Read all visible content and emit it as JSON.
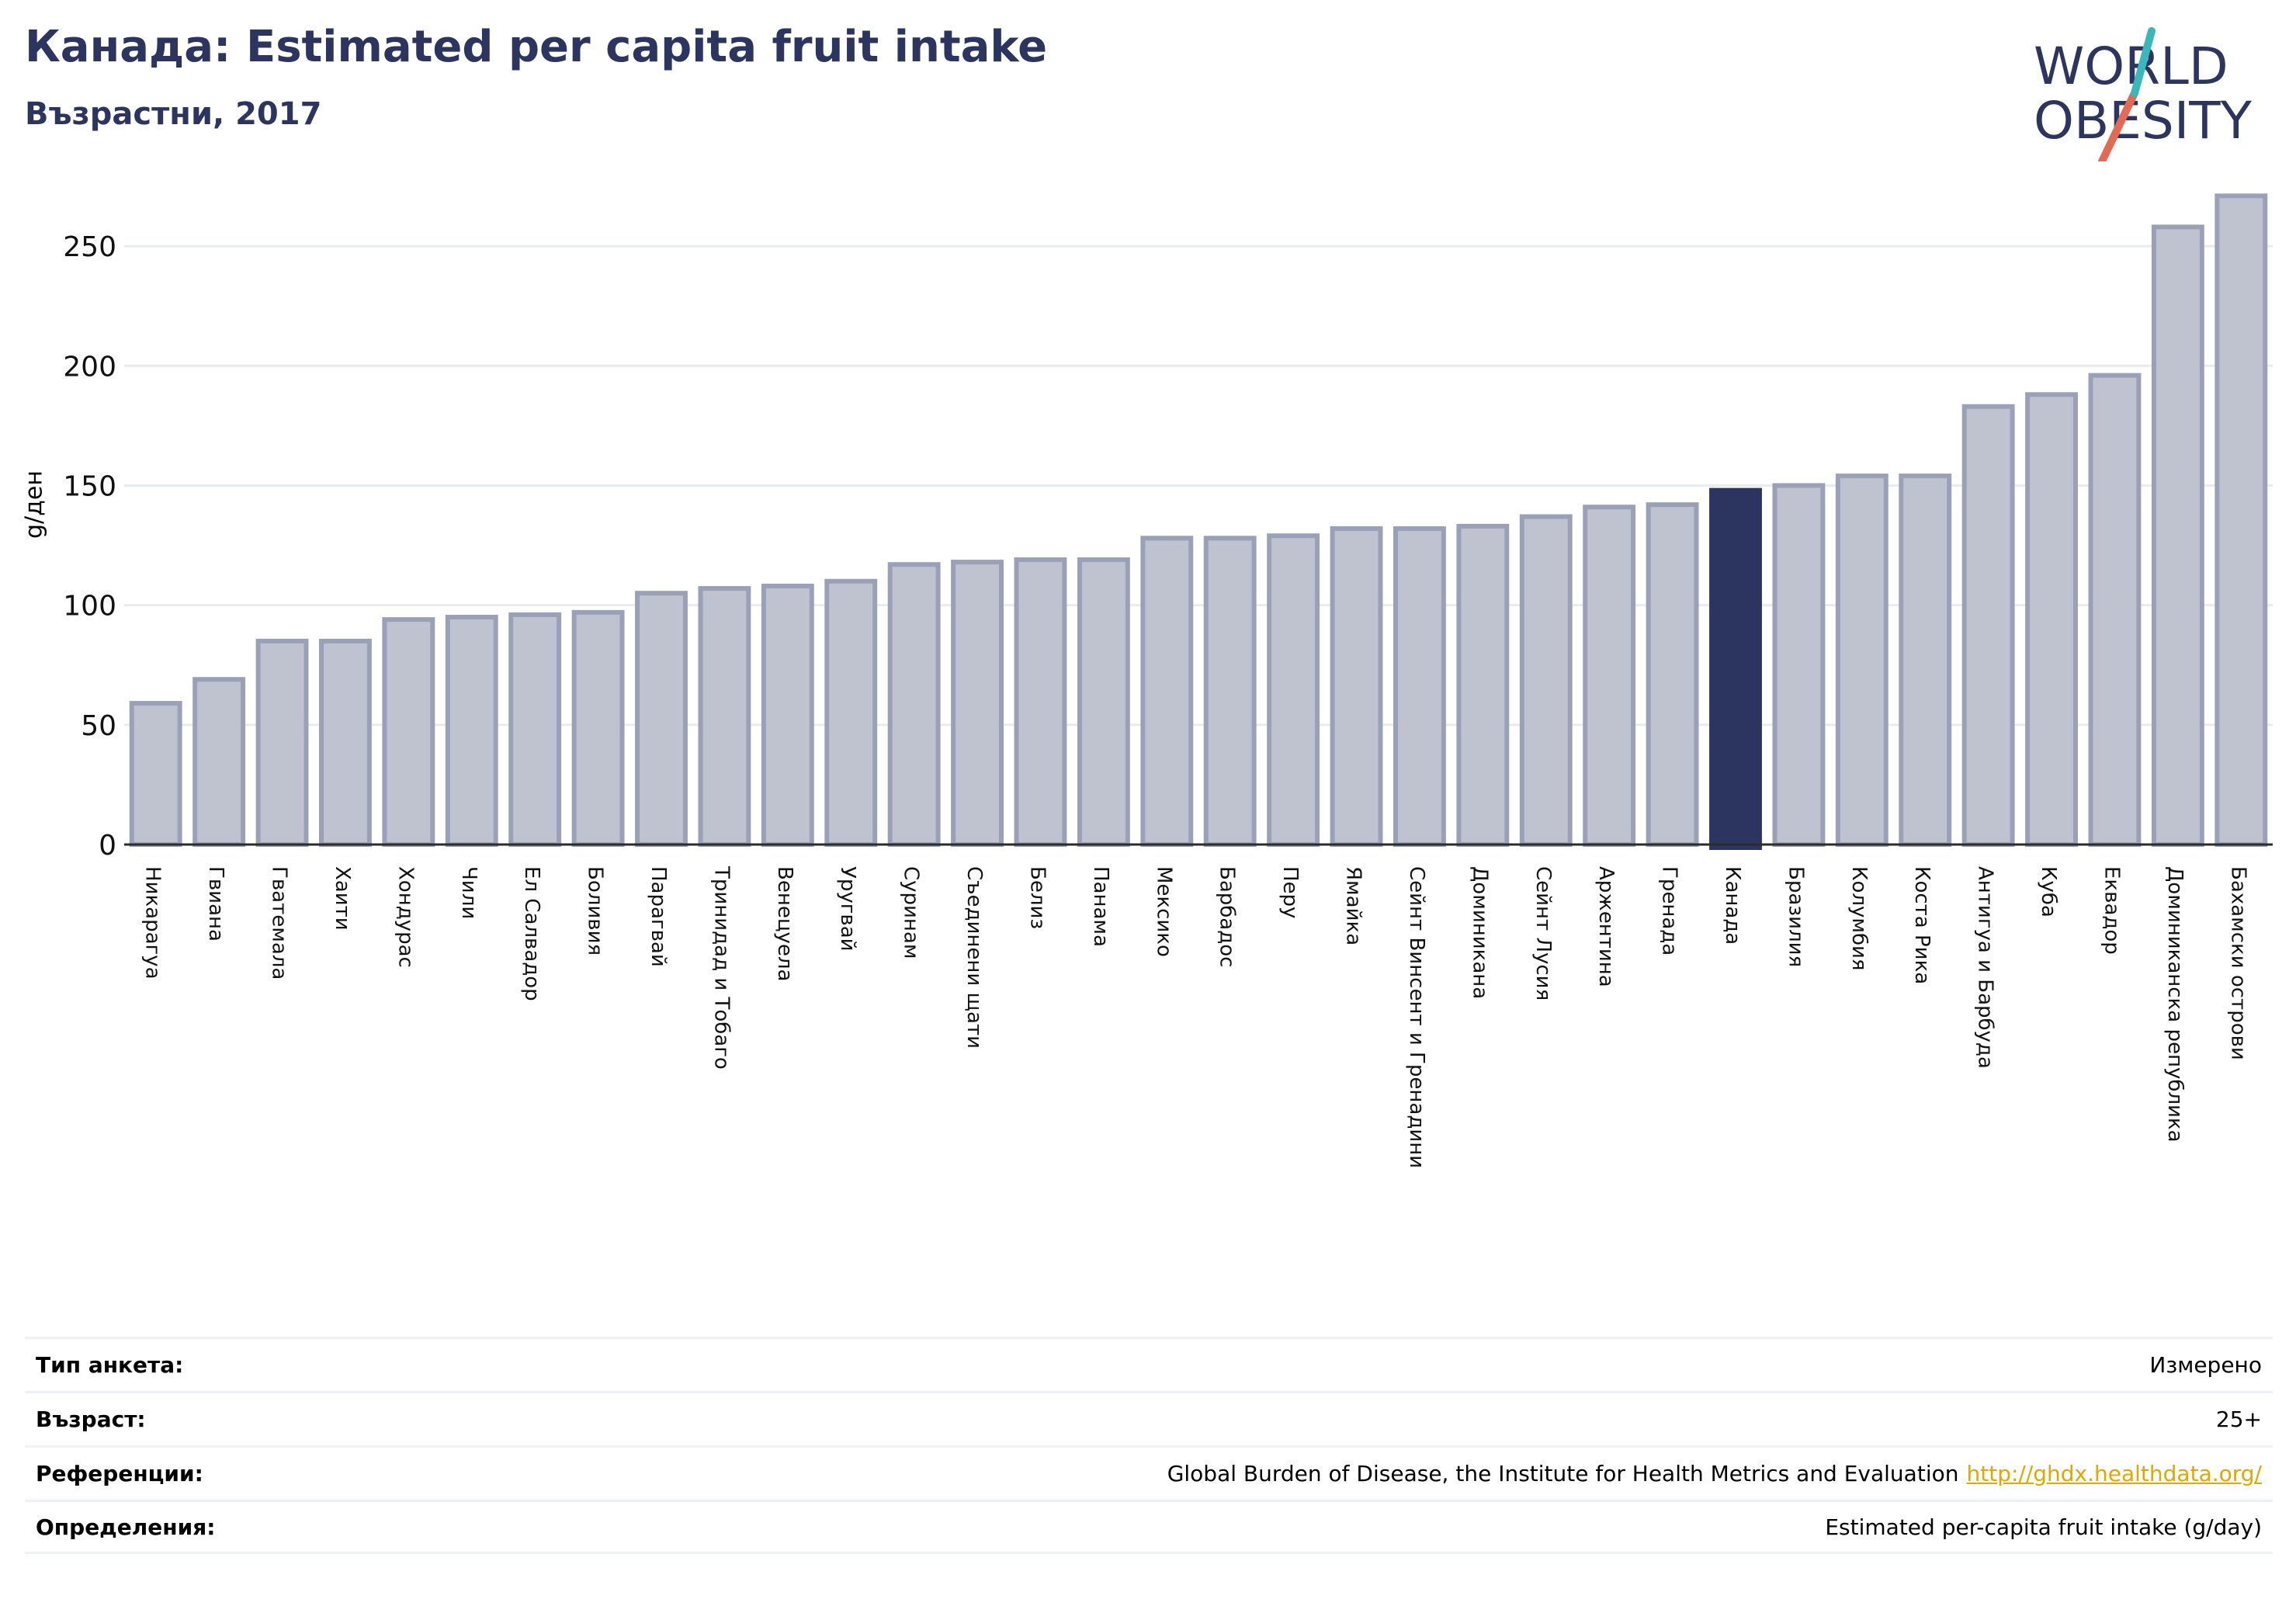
{
  "header": {
    "title": "Канада: Estimated per capita fruit intake",
    "subtitle": "Възрастни, 2017"
  },
  "logo": {
    "line1": "WORLD",
    "line2": "OBESITY"
  },
  "colors": {
    "bar": "#bfc3d0",
    "bar_stroke": "#9aa0b8",
    "highlight": "#2b3560",
    "grid": "#e8ebf0",
    "text": "#2b3560"
  },
  "chart_data": {
    "type": "bar",
    "ylabel": "g/ден",
    "ylim": [
      0,
      275
    ],
    "yticks": [
      0,
      50,
      100,
      150,
      200,
      250
    ],
    "grid": true,
    "highlight": "Канада",
    "categories": [
      "Никарагуа",
      "Гвиана",
      "Гватемала",
      "Хаити",
      "Хондурас",
      "Чили",
      "Ел Салвадор",
      "Боливия",
      "Парагвай",
      "Тринидад и Тобаго",
      "Венецуела",
      "Уругвай",
      "Суринам",
      "Съединени щати",
      "Белиз",
      "Панама",
      "Мексико",
      "Барбадос",
      "Перу",
      "Ямайка",
      "Сейнт Винсент и Гренадини",
      "Доминикана",
      "Сейнт Лусия",
      "Аржентина",
      "Гренада",
      "Канада",
      "Бразилия",
      "Колумбия",
      "Коста Рика",
      "Антигуа и Барбуда",
      "Куба",
      "Еквадор",
      "Доминиканска република",
      "Бахамски острови"
    ],
    "values": [
      59,
      69,
      85,
      85,
      94,
      95,
      96,
      97,
      105,
      107,
      108,
      110,
      117,
      118,
      119,
      119,
      128,
      128,
      129,
      132,
      132,
      133,
      137,
      141,
      142,
      148,
      150,
      154,
      154,
      183,
      188,
      196,
      258,
      271
    ]
  },
  "info": [
    {
      "label": "Тип анкета:",
      "value": "Измерено"
    },
    {
      "label": "Възраст:",
      "value": "25+"
    },
    {
      "label": "Референции:",
      "value": "Global Burden of Disease, the Institute for Health Metrics and Evaluation",
      "link": "http://ghdx.healthdata.org/"
    },
    {
      "label": "Определения:",
      "value": "Estimated per-capita fruit intake (g/day)"
    }
  ]
}
